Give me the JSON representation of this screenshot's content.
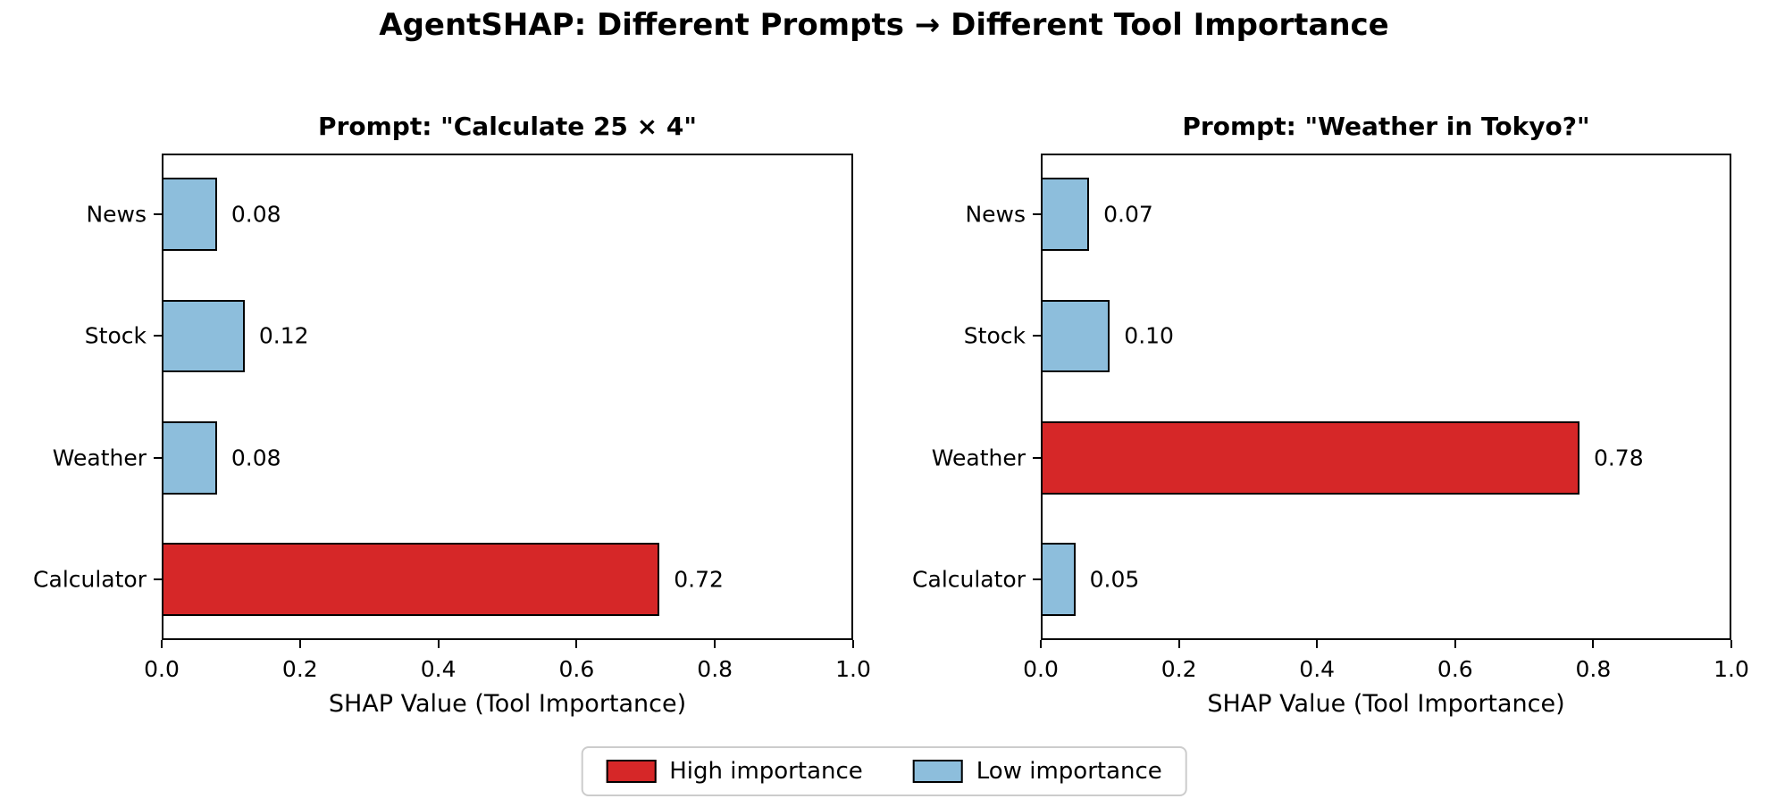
{
  "figure": {
    "title": "AgentSHAP: Different Prompts → Different Tool Importance",
    "background": "#ffffff"
  },
  "palette": {
    "high": "#d62728",
    "low": "#8dbedc",
    "bar_edge": "#000000",
    "text": "#000000",
    "axis": "#000000",
    "legend_border": "#cccccc"
  },
  "legend": {
    "position": "lower center",
    "items": [
      {
        "label": "High importance",
        "color_key": "high"
      },
      {
        "label": "Low importance",
        "color_key": "low"
      }
    ]
  },
  "chart_data": [
    {
      "type": "bar",
      "orientation": "horizontal",
      "title": "Prompt: \"Calculate 25 × 4\"",
      "categories": [
        "News",
        "Stock",
        "Weather",
        "Calculator"
      ],
      "category_order": "top-to-bottom",
      "values": [
        0.08,
        0.12,
        0.08,
        0.72
      ],
      "value_labels": [
        "0.08",
        "0.12",
        "0.08",
        "0.72"
      ],
      "importance": [
        "low",
        "low",
        "low",
        "high"
      ],
      "xlabel": "SHAP Value (Tool Importance)",
      "xlim": [
        0.0,
        1.0
      ],
      "xticks": [
        "0.0",
        "0.2",
        "0.4",
        "0.6",
        "0.8",
        "1.0"
      ],
      "grid": false
    },
    {
      "type": "bar",
      "orientation": "horizontal",
      "title": "Prompt: \"Weather in Tokyo?\"",
      "categories": [
        "News",
        "Stock",
        "Weather",
        "Calculator"
      ],
      "category_order": "top-to-bottom",
      "values": [
        0.07,
        0.1,
        0.78,
        0.05
      ],
      "value_labels": [
        "0.07",
        "0.10",
        "0.78",
        "0.05"
      ],
      "importance": [
        "low",
        "low",
        "high",
        "low"
      ],
      "xlabel": "SHAP Value (Tool Importance)",
      "xlim": [
        0.0,
        1.0
      ],
      "xticks": [
        "0.0",
        "0.2",
        "0.4",
        "0.6",
        "0.8",
        "1.0"
      ],
      "grid": false
    }
  ]
}
